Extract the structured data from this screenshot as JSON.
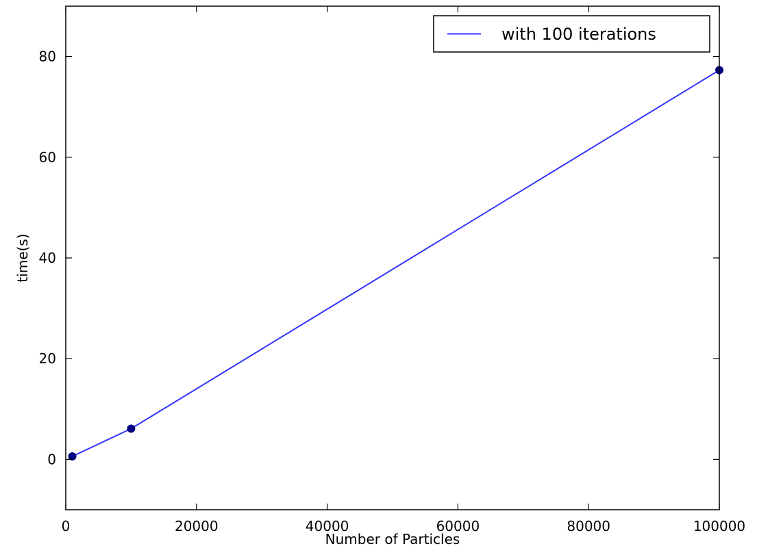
{
  "chart_data": {
    "type": "line",
    "title": "",
    "xlabel": "Number of Particles",
    "ylabel": "time(s)",
    "xlim": [
      0,
      100000
    ],
    "ylim": [
      -10,
      90
    ],
    "x_ticks": [
      0,
      20000,
      40000,
      60000,
      80000,
      100000
    ],
    "x_tick_labels": [
      "0",
      "20000",
      "40000",
      "60000",
      "80000",
      "100000"
    ],
    "y_ticks": [
      0,
      20,
      40,
      60,
      80
    ],
    "y_tick_labels": [
      "0",
      "20",
      "40",
      "60",
      "80"
    ],
    "grid": false,
    "legend_position": "upper right",
    "series": [
      {
        "name": "with 100 iterations",
        "color": "#3333ff",
        "marker_color": "#00007f",
        "x": [
          1000,
          10000,
          100000
        ],
        "y": [
          0.6,
          6.1,
          77.3
        ]
      }
    ]
  }
}
